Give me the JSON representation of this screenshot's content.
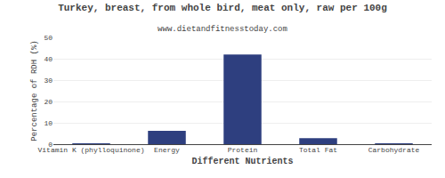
{
  "chart_data": {
    "type": "bar",
    "title": "Turkey, breast, from whole bird, meat only, raw per 100g",
    "subtitle": "www.dietandfitnesstoday.com",
    "xlabel": "Different Nutrients",
    "ylabel": "Percentage of RDH (%)",
    "categories": [
      "Vitamin K (phylloquinone)",
      "Energy",
      "Protein",
      "Total Fat",
      "Carbohydrate"
    ],
    "values": [
      0.1,
      6.2,
      42.0,
      2.8,
      0.1
    ],
    "color": "#2e3f7f",
    "ylim": [
      0,
      50
    ],
    "yticks": [
      0,
      10,
      20,
      30,
      40,
      50
    ],
    "grid": true
  }
}
